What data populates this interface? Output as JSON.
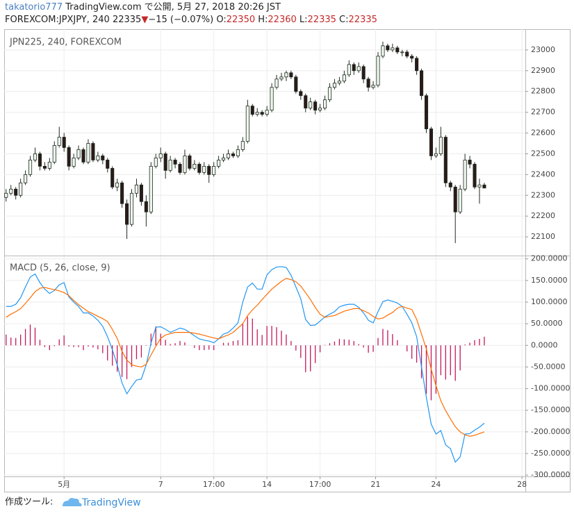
{
  "header": {
    "user": "takatorio777",
    "published": "TradingView.com で公開, 5月 27, 2018 20:26 JST",
    "symbol": "FOREXCOM:JPXJPY, 240",
    "last": "22335",
    "arrow": "▼",
    "change": "−15 (−0.07%)",
    "o_label": "O:",
    "o": "22350",
    "h_label": "H:",
    "h": "22360",
    "l_label": "L:",
    "l": "22335",
    "c_label": "C:",
    "c": "22335"
  },
  "footer": {
    "made_with": "作成ツール:",
    "brand": "TradingView"
  },
  "chart_data": [
    {
      "type": "candlestick",
      "title": "JPN225, 240, FOREXCOM",
      "up_color": "#eef7ee",
      "down_color": "#2a1a1a",
      "outline_color": "#1f2a1f",
      "grid": true,
      "xlim": [
        -0.4,
        107.5
      ],
      "ylim": [
        22010,
        23100
      ],
      "yticks": [
        22100,
        22200,
        22300,
        22400,
        22500,
        22600,
        22700,
        22800,
        22900,
        23000
      ],
      "open": [
        22290,
        22310,
        22330,
        22300,
        22360,
        22400,
        22470,
        22500,
        22440,
        22430,
        22460,
        22540,
        22580,
        22530,
        22440,
        22480,
        22520,
        22460,
        22550,
        22470,
        22490,
        22470,
        22430,
        22340,
        22360,
        22260,
        22160,
        22310,
        22350,
        22270,
        22220,
        22440,
        22480,
        22500,
        22420,
        22470,
        22450,
        22410,
        22490,
        22430,
        22450,
        22410,
        22440,
        22400,
        22440,
        22470,
        22480,
        22500,
        22490,
        22520,
        22560,
        22730,
        22690,
        22700,
        22690,
        22710,
        22820,
        22860,
        22870,
        22890,
        22870,
        22800,
        22780,
        22720,
        22750,
        22710,
        22720,
        22760,
        22820,
        22840,
        22850,
        22880,
        22930,
        22900,
        22920,
        22860,
        22820,
        22830,
        22970,
        23020,
        23000,
        23010,
        22990,
        22990,
        22970,
        22960,
        22900,
        22780,
        22620,
        22490,
        22500,
        22580,
        22360,
        22340,
        22220,
        22330,
        22470,
        22450,
        22340,
        22350
      ],
      "high": [
        22330,
        22350,
        22340,
        22380,
        22420,
        22490,
        22530,
        22510,
        22460,
        22480,
        22560,
        22630,
        22600,
        22540,
        22500,
        22540,
        22530,
        22570,
        22560,
        22510,
        22500,
        22480,
        22440,
        22380,
        22370,
        22280,
        22330,
        22380,
        22360,
        22300,
        22460,
        22500,
        22530,
        22510,
        22490,
        22480,
        22460,
        22520,
        22500,
        22470,
        22460,
        22460,
        22450,
        22460,
        22490,
        22500,
        22520,
        22510,
        22540,
        22580,
        22760,
        22740,
        22720,
        22710,
        22730,
        22840,
        22880,
        22890,
        22900,
        22900,
        22880,
        22810,
        22790,
        22770,
        22760,
        22740,
        22780,
        22840,
        22860,
        22870,
        22900,
        22950,
        22940,
        22940,
        22930,
        22870,
        22850,
        22990,
        23040,
        23030,
        23030,
        23020,
        23000,
        23000,
        22980,
        22970,
        22910,
        22790,
        22630,
        22530,
        22630,
        22590,
        22370,
        22350,
        22350,
        22500,
        22490,
        22460,
        22380,
        22360
      ],
      "low": [
        22270,
        22300,
        22280,
        22290,
        22350,
        22390,
        22460,
        22420,
        22420,
        22420,
        22450,
        22530,
        22510,
        22420,
        22430,
        22470,
        22450,
        22450,
        22460,
        22460,
        22450,
        22410,
        22330,
        22320,
        22240,
        22090,
        22150,
        22290,
        22250,
        22150,
        22210,
        22430,
        22460,
        22380,
        22410,
        22430,
        22400,
        22400,
        22420,
        22420,
        22400,
        22400,
        22360,
        22390,
        22430,
        22460,
        22470,
        22480,
        22480,
        22510,
        22550,
        22680,
        22680,
        22680,
        22680,
        22700,
        22810,
        22850,
        22850,
        22860,
        22790,
        22760,
        22700,
        22710,
        22690,
        22700,
        22710,
        22750,
        22810,
        22830,
        22840,
        22870,
        22880,
        22890,
        22840,
        22800,
        22810,
        22820,
        22960,
        22990,
        22990,
        22980,
        22970,
        22960,
        22940,
        22880,
        22760,
        22600,
        22470,
        22480,
        22490,
        22340,
        22320,
        22070,
        22210,
        22320,
        22430,
        22330,
        22260,
        22335
      ],
      "close": [
        22310,
        22330,
        22300,
        22360,
        22400,
        22470,
        22500,
        22440,
        22430,
        22460,
        22540,
        22580,
        22530,
        22440,
        22480,
        22520,
        22460,
        22550,
        22470,
        22490,
        22470,
        22430,
        22340,
        22360,
        22260,
        22160,
        22310,
        22350,
        22270,
        22220,
        22440,
        22480,
        22500,
        22420,
        22470,
        22450,
        22410,
        22490,
        22430,
        22450,
        22410,
        22440,
        22400,
        22440,
        22470,
        22480,
        22500,
        22490,
        22520,
        22560,
        22730,
        22690,
        22700,
        22690,
        22710,
        22820,
        22860,
        22870,
        22890,
        22870,
        22800,
        22780,
        22720,
        22750,
        22710,
        22720,
        22760,
        22820,
        22840,
        22850,
        22880,
        22930,
        22900,
        22920,
        22860,
        22820,
        22830,
        22970,
        23020,
        23000,
        23010,
        22990,
        22990,
        22970,
        22960,
        22900,
        22780,
        22620,
        22490,
        22500,
        22580,
        22360,
        22340,
        22220,
        22330,
        22470,
        22450,
        22340,
        22350,
        22335
      ]
    },
    {
      "type": "macd",
      "title": "MACD (5, 26, close, 9)",
      "grid": true,
      "xlim": [
        -0.4,
        107.5
      ],
      "ylim": [
        -303,
        206
      ],
      "xticks": [
        {
          "value": 12,
          "label": "5月"
        },
        {
          "value": 32,
          "label": "7"
        },
        {
          "value": 43,
          "label": "17:00"
        },
        {
          "value": 54,
          "label": "14"
        },
        {
          "value": 65,
          "label": "17:00"
        },
        {
          "value": 76.5,
          "label": "21"
        },
        {
          "value": 89,
          "label": "24"
        },
        {
          "value": 106.8,
          "label": "28"
        }
      ],
      "yticks": [
        {
          "value": 200,
          "label": "200.0000"
        },
        {
          "value": 150,
          "label": "150.0000"
        },
        {
          "value": 100,
          "label": "100.0000"
        },
        {
          "value": 50,
          "label": "50.0000"
        },
        {
          "value": 0,
          "label": "0.0000"
        },
        {
          "value": -50,
          "label": "-50.0000"
        },
        {
          "value": -100,
          "label": "-100.0000"
        },
        {
          "value": -150,
          "label": "-150.0000"
        },
        {
          "value": -200,
          "label": "-200.0000"
        },
        {
          "value": -250,
          "label": "-250.0000"
        },
        {
          "value": -300,
          "label": "-300.0000"
        }
      ],
      "series": [
        {
          "kind": "histogram",
          "color": "#c2185b",
          "values": [
            25,
            18,
            17,
            25,
            38,
            48,
            41,
            13,
            -4,
            -11,
            -2,
            14,
            23,
            -3,
            -4,
            -4,
            -11,
            -3,
            -5,
            -9,
            -18,
            -35,
            -47,
            -61,
            -73,
            -78,
            -50,
            -32,
            -28,
            -1,
            27,
            44,
            27,
            13,
            3,
            5,
            10,
            7,
            0,
            -6,
            -11,
            -11,
            -10,
            -11,
            0,
            6,
            6,
            10,
            12,
            50,
            66,
            62,
            37,
            24,
            45,
            45,
            42,
            34,
            25,
            10,
            -12,
            -29,
            -62,
            -60,
            -41,
            -16,
            1,
            5,
            9,
            15,
            14,
            13,
            10,
            3,
            -5,
            -17,
            -15,
            17,
            38,
            35,
            26,
            12,
            0,
            -14,
            -31,
            -40,
            -76,
            -112,
            -127,
            -112,
            -69,
            -79,
            -69,
            -82,
            -58,
            2,
            6,
            12,
            15,
            20
          ]
        },
        {
          "kind": "line",
          "color": "#2196f3",
          "values": [
            90,
            90,
            95,
            110,
            135,
            158,
            165,
            145,
            130,
            120,
            127,
            140,
            145,
            112,
            100,
            90,
            75,
            75,
            68,
            58,
            44,
            20,
            -10,
            -45,
            -87,
            -112,
            -95,
            -80,
            -78,
            -45,
            5,
            42,
            43,
            37,
            30,
            35,
            40,
            37,
            30,
            22,
            15,
            12,
            10,
            6,
            15,
            26,
            30,
            40,
            52,
            100,
            135,
            144,
            130,
            130,
            163,
            175,
            181,
            182,
            180,
            162,
            135,
            108,
            60,
            46,
            47,
            56,
            66,
            72,
            78,
            89,
            93,
            95,
            95,
            88,
            75,
            58,
            52,
            78,
            101,
            105,
            102,
            98,
            90,
            72,
            52,
            20,
            -50,
            -120,
            -182,
            -205,
            -197,
            -230,
            -239,
            -270,
            -258,
            -205,
            -204,
            -196,
            -189,
            -180
          ]
        },
        {
          "kind": "line",
          "color": "#ff6d00",
          "values": [
            65,
            72,
            78,
            85,
            97,
            110,
            124,
            132,
            134,
            131,
            129,
            126,
            122,
            115,
            104,
            94,
            86,
            78,
            73,
            67,
            62,
            55,
            37,
            16,
            -14,
            -34,
            -45,
            -48,
            -50,
            -44,
            -22,
            -2,
            16,
            24,
            27,
            30,
            30,
            30,
            30,
            28,
            26,
            23,
            20,
            17,
            15,
            20,
            24,
            30,
            40,
            50,
            69,
            82,
            93,
            106,
            118,
            130,
            139,
            148,
            155,
            152,
            147,
            137,
            122,
            106,
            88,
            72,
            65,
            67,
            69,
            74,
            79,
            82,
            85,
            85,
            80,
            75,
            67,
            61,
            63,
            70,
            76,
            86,
            90,
            86,
            83,
            60,
            26,
            -8,
            -55,
            -93,
            -128,
            -151,
            -170,
            -188,
            -200,
            -207,
            -210,
            -208,
            -204,
            -200
          ]
        }
      ]
    }
  ]
}
